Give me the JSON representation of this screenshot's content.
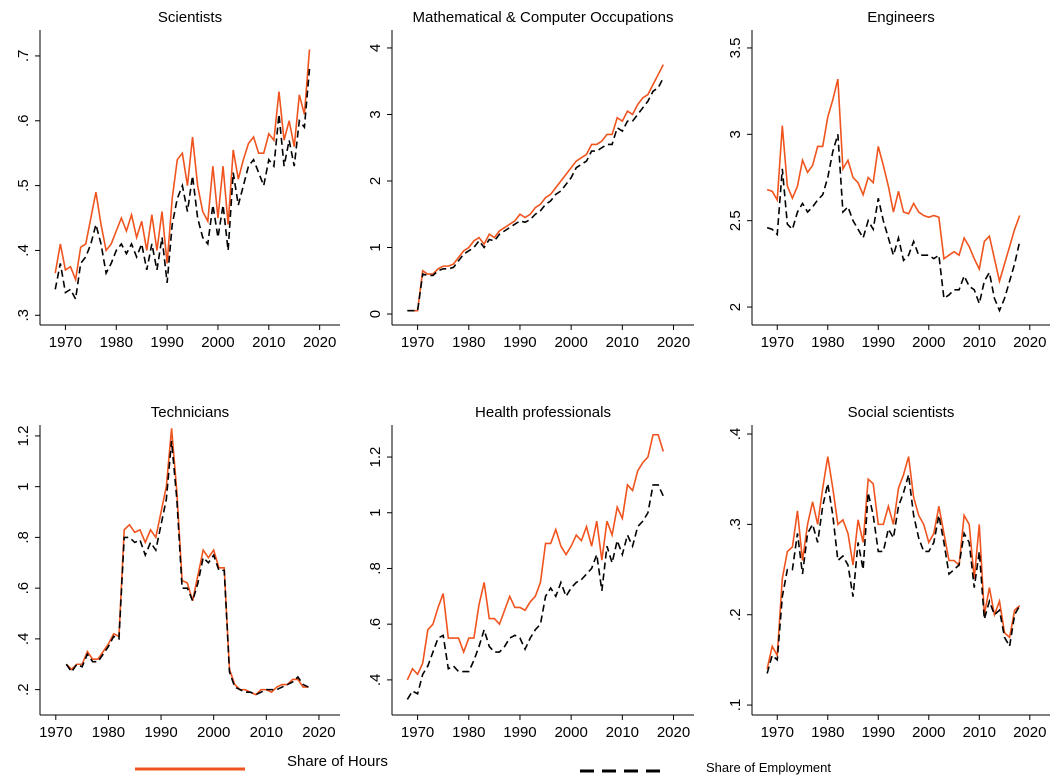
{
  "chart_data": [
    {
      "type": "line",
      "title": "Scientists",
      "x": [
        1968,
        1969,
        1970,
        1971,
        1972,
        1973,
        1974,
        1975,
        1976,
        1977,
        1978,
        1979,
        1980,
        1981,
        1982,
        1983,
        1984,
        1985,
        1986,
        1987,
        1988,
        1989,
        1990,
        1991,
        1992,
        1993,
        1994,
        1995,
        1996,
        1997,
        1998,
        1999,
        2000,
        2001,
        2002,
        2003,
        2004,
        2005,
        2006,
        2007,
        2008,
        2009,
        2010,
        2011,
        2012,
        2013,
        2014,
        2015,
        2016,
        2017,
        2018
      ],
      "series": [
        {
          "name": "Share of Hours",
          "color": "#f0541e",
          "values": [
            0.365,
            0.41,
            0.37,
            0.375,
            0.355,
            0.405,
            0.41,
            0.45,
            0.49,
            0.44,
            0.4,
            0.41,
            0.43,
            0.45,
            0.43,
            0.455,
            0.42,
            0.445,
            0.4,
            0.455,
            0.4,
            0.46,
            0.38,
            0.48,
            0.54,
            0.55,
            0.5,
            0.575,
            0.5,
            0.46,
            0.445,
            0.53,
            0.45,
            0.53,
            0.44,
            0.555,
            0.51,
            0.54,
            0.565,
            0.575,
            0.55,
            0.55,
            0.58,
            0.57,
            0.645,
            0.57,
            0.6,
            0.56,
            0.64,
            0.61,
            0.71
          ]
        },
        {
          "name": "Share of Employment",
          "color": "#000000",
          "values": [
            0.34,
            0.38,
            0.335,
            0.34,
            0.325,
            0.38,
            0.39,
            0.41,
            0.44,
            0.41,
            0.365,
            0.38,
            0.4,
            0.41,
            0.395,
            0.41,
            0.39,
            0.41,
            0.37,
            0.41,
            0.37,
            0.42,
            0.35,
            0.44,
            0.48,
            0.5,
            0.46,
            0.515,
            0.45,
            0.42,
            0.41,
            0.47,
            0.42,
            0.47,
            0.4,
            0.52,
            0.47,
            0.5,
            0.53,
            0.54,
            0.52,
            0.5,
            0.54,
            0.53,
            0.61,
            0.53,
            0.57,
            0.53,
            0.6,
            0.59,
            0.68
          ]
        }
      ],
      "xlim": [
        1965,
        2024
      ],
      "xticks": [
        1970,
        1980,
        1990,
        2000,
        2010,
        2020
      ],
      "ylim": [
        0.285,
        0.74
      ],
      "yticks": [
        {
          "value": 0.3,
          "label": ".3"
        },
        {
          "value": 0.4,
          "label": ".4"
        },
        {
          "value": 0.5,
          "label": ".5"
        },
        {
          "value": 0.6,
          "label": ".6"
        },
        {
          "value": 0.7,
          "label": ".7"
        }
      ]
    },
    {
      "type": "line",
      "title": "Mathematical & Computer Occupations",
      "x": [
        1968,
        1969,
        1970,
        1971,
        1972,
        1973,
        1974,
        1975,
        1976,
        1977,
        1978,
        1979,
        1980,
        1981,
        1982,
        1983,
        1984,
        1985,
        1986,
        1987,
        1988,
        1989,
        1990,
        1991,
        1992,
        1993,
        1994,
        1995,
        1996,
        1997,
        1998,
        1999,
        2000,
        2001,
        2002,
        2003,
        2004,
        2005,
        2006,
        2007,
        2008,
        2009,
        2010,
        2011,
        2012,
        2013,
        2014,
        2015,
        2016,
        2017,
        2018
      ],
      "series": [
        {
          "name": "Share of Hours",
          "color": "#f0541e",
          "values": [
            0.05,
            0.05,
            0.05,
            0.65,
            0.6,
            0.6,
            0.68,
            0.72,
            0.72,
            0.75,
            0.85,
            0.95,
            1.0,
            1.1,
            1.15,
            1.05,
            1.2,
            1.15,
            1.25,
            1.3,
            1.35,
            1.4,
            1.5,
            1.45,
            1.5,
            1.6,
            1.65,
            1.75,
            1.8,
            1.9,
            2.0,
            2.1,
            2.2,
            2.3,
            2.35,
            2.4,
            2.55,
            2.55,
            2.6,
            2.7,
            2.7,
            2.95,
            2.9,
            3.05,
            3.0,
            3.15,
            3.25,
            3.3,
            3.45,
            3.6,
            3.75
          ]
        },
        {
          "name": "Share of Employment",
          "color": "#000000",
          "values": [
            0.05,
            0.05,
            0.05,
            0.6,
            0.58,
            0.58,
            0.65,
            0.68,
            0.68,
            0.7,
            0.8,
            0.9,
            0.95,
            1.0,
            1.1,
            1.0,
            1.12,
            1.1,
            1.2,
            1.25,
            1.3,
            1.35,
            1.4,
            1.38,
            1.42,
            1.5,
            1.55,
            1.65,
            1.7,
            1.8,
            1.85,
            1.95,
            2.05,
            2.2,
            2.25,
            2.3,
            2.45,
            2.45,
            2.5,
            2.55,
            2.55,
            2.8,
            2.75,
            2.9,
            2.9,
            3.0,
            3.1,
            3.2,
            3.35,
            3.4,
            3.55
          ]
        }
      ],
      "xlim": [
        1965,
        2024
      ],
      "xticks": [
        1970,
        1980,
        1990,
        2000,
        2010,
        2020
      ],
      "ylim": [
        -0.165,
        4.27
      ],
      "yticks": [
        0,
        1,
        2,
        3,
        4
      ]
    },
    {
      "type": "line",
      "title": "Engineers",
      "x": [
        1968,
        1969,
        1970,
        1971,
        1972,
        1973,
        1974,
        1975,
        1976,
        1977,
        1978,
        1979,
        1980,
        1981,
        1982,
        1983,
        1984,
        1985,
        1986,
        1987,
        1988,
        1989,
        1990,
        1991,
        1992,
        1993,
        1994,
        1995,
        1996,
        1997,
        1998,
        1999,
        2000,
        2001,
        2002,
        2003,
        2004,
        2005,
        2006,
        2007,
        2008,
        2009,
        2010,
        2011,
        2012,
        2013,
        2014,
        2015,
        2016,
        2017,
        2018
      ],
      "series": [
        {
          "name": "Share of Hours",
          "color": "#f0541e",
          "values": [
            2.68,
            2.67,
            2.62,
            3.05,
            2.7,
            2.63,
            2.7,
            2.85,
            2.78,
            2.82,
            2.93,
            2.93,
            3.1,
            3.2,
            3.32,
            2.8,
            2.85,
            2.75,
            2.72,
            2.65,
            2.75,
            2.72,
            2.93,
            2.82,
            2.7,
            2.55,
            2.67,
            2.55,
            2.54,
            2.6,
            2.55,
            2.53,
            2.52,
            2.53,
            2.52,
            2.28,
            2.3,
            2.32,
            2.3,
            2.4,
            2.35,
            2.28,
            2.22,
            2.38,
            2.41,
            2.28,
            2.15,
            2.25,
            2.35,
            2.45,
            2.53
          ]
        },
        {
          "name": "Share of Employment",
          "color": "#000000",
          "values": [
            2.46,
            2.45,
            2.42,
            2.8,
            2.48,
            2.45,
            2.55,
            2.6,
            2.55,
            2.58,
            2.62,
            2.65,
            2.75,
            2.9,
            3.0,
            2.55,
            2.58,
            2.5,
            2.45,
            2.4,
            2.5,
            2.45,
            2.63,
            2.5,
            2.4,
            2.3,
            2.4,
            2.27,
            2.3,
            2.38,
            2.3,
            2.3,
            2.3,
            2.28,
            2.3,
            2.05,
            2.07,
            2.1,
            2.1,
            2.18,
            2.12,
            2.1,
            2.02,
            2.15,
            2.2,
            2.05,
            1.98,
            2.05,
            2.15,
            2.25,
            2.38
          ]
        }
      ],
      "xlim": [
        1965,
        2024
      ],
      "xticks": [
        1970,
        1980,
        1990,
        2000,
        2010,
        2020
      ],
      "ylim": [
        1.896,
        3.604
      ],
      "yticks": [
        2,
        2.5,
        3,
        3.5
      ]
    },
    {
      "type": "line",
      "title": "Technicians",
      "x": [
        1972,
        1973,
        1974,
        1975,
        1976,
        1977,
        1978,
        1979,
        1980,
        1981,
        1982,
        1983,
        1984,
        1985,
        1986,
        1987,
        1988,
        1989,
        1990,
        1991,
        1992,
        1993,
        1994,
        1995,
        1996,
        1997,
        1998,
        1999,
        2000,
        2001,
        2002,
        2003,
        2004,
        2005,
        2006,
        2007,
        2008,
        2009,
        2010,
        2011,
        2012,
        2013,
        2014,
        2015,
        2016,
        2017,
        2018
      ],
      "series": [
        {
          "name": "Share of Hours",
          "color": "#f0541e",
          "values": [
            0.3,
            0.28,
            0.3,
            0.3,
            0.35,
            0.32,
            0.32,
            0.35,
            0.38,
            0.42,
            0.41,
            0.83,
            0.85,
            0.82,
            0.83,
            0.78,
            0.83,
            0.8,
            0.9,
            1.0,
            1.23,
            0.98,
            0.63,
            0.62,
            0.55,
            0.65,
            0.75,
            0.72,
            0.75,
            0.68,
            0.68,
            0.28,
            0.22,
            0.2,
            0.2,
            0.19,
            0.18,
            0.2,
            0.2,
            0.19,
            0.21,
            0.22,
            0.22,
            0.24,
            0.24,
            0.21,
            0.21
          ]
        },
        {
          "name": "Share of Employment",
          "color": "#000000",
          "values": [
            0.3,
            0.27,
            0.3,
            0.29,
            0.34,
            0.31,
            0.31,
            0.34,
            0.37,
            0.41,
            0.4,
            0.8,
            0.8,
            0.78,
            0.79,
            0.73,
            0.78,
            0.75,
            0.85,
            0.95,
            1.18,
            0.95,
            0.6,
            0.6,
            0.55,
            0.62,
            0.72,
            0.7,
            0.73,
            0.67,
            0.67,
            0.27,
            0.21,
            0.2,
            0.19,
            0.19,
            0.18,
            0.19,
            0.2,
            0.2,
            0.2,
            0.21,
            0.22,
            0.23,
            0.25,
            0.22,
            0.21
          ]
        }
      ],
      "xlim": [
        1967,
        2024
      ],
      "xticks": [
        1970,
        1980,
        1990,
        2000,
        2010,
        2020
      ],
      "ylim": [
        0.1,
        1.243
      ],
      "yticks": [
        {
          "value": 0.2,
          "label": ".2"
        },
        {
          "value": 0.4,
          "label": ".4"
        },
        {
          "value": 0.6,
          "label": ".6"
        },
        {
          "value": 0.8,
          "label": ".8"
        },
        1,
        1.2
      ]
    },
    {
      "type": "line",
      "title": "Health professionals",
      "x": [
        1968,
        1969,
        1970,
        1971,
        1972,
        1973,
        1974,
        1975,
        1976,
        1977,
        1978,
        1979,
        1980,
        1981,
        1982,
        1983,
        1984,
        1985,
        1986,
        1987,
        1988,
        1989,
        1990,
        1991,
        1992,
        1993,
        1994,
        1995,
        1996,
        1997,
        1998,
        1999,
        2000,
        2001,
        2002,
        2003,
        2004,
        2005,
        2006,
        2007,
        2008,
        2009,
        2010,
        2011,
        2012,
        2013,
        2014,
        2015,
        2016,
        2017,
        2018
      ],
      "series": [
        {
          "name": "Share of Hours",
          "color": "#f0541e",
          "values": [
            0.4,
            0.44,
            0.42,
            0.46,
            0.58,
            0.6,
            0.66,
            0.71,
            0.55,
            0.55,
            0.55,
            0.5,
            0.55,
            0.55,
            0.67,
            0.75,
            0.62,
            0.62,
            0.6,
            0.65,
            0.7,
            0.66,
            0.66,
            0.65,
            0.68,
            0.7,
            0.75,
            0.89,
            0.89,
            0.94,
            0.88,
            0.85,
            0.88,
            0.92,
            0.9,
            0.95,
            0.88,
            0.97,
            0.83,
            0.97,
            0.92,
            1.02,
            0.98,
            1.1,
            1.08,
            1.15,
            1.18,
            1.2,
            1.28,
            1.28,
            1.22
          ]
        },
        {
          "name": "Share of Employment",
          "color": "#000000",
          "values": [
            0.33,
            0.36,
            0.35,
            0.42,
            0.45,
            0.5,
            0.55,
            0.56,
            0.44,
            0.45,
            0.43,
            0.43,
            0.43,
            0.47,
            0.52,
            0.58,
            0.52,
            0.5,
            0.5,
            0.52,
            0.55,
            0.56,
            0.55,
            0.51,
            0.55,
            0.58,
            0.6,
            0.7,
            0.73,
            0.7,
            0.75,
            0.7,
            0.73,
            0.75,
            0.76,
            0.78,
            0.8,
            0.85,
            0.72,
            0.88,
            0.82,
            0.9,
            0.85,
            0.92,
            0.88,
            0.95,
            0.97,
            1.0,
            1.1,
            1.1,
            1.06
          ]
        }
      ],
      "xlim": [
        1965,
        2024
      ],
      "xticks": [
        1970,
        1980,
        1990,
        2000,
        2010,
        2020
      ],
      "ylim": [
        0.274,
        1.315
      ],
      "yticks": [
        {
          "value": 0.4,
          "label": ".4"
        },
        {
          "value": 0.6,
          "label": ".6"
        },
        {
          "value": 0.8,
          "label": ".8"
        },
        1,
        1.2
      ]
    },
    {
      "type": "line",
      "title": "Social scientists",
      "x": [
        1968,
        1969,
        1970,
        1971,
        1972,
        1973,
        1974,
        1975,
        1976,
        1977,
        1978,
        1979,
        1980,
        1981,
        1982,
        1983,
        1984,
        1985,
        1986,
        1987,
        1988,
        1989,
        1990,
        1991,
        1992,
        1993,
        1994,
        1995,
        1996,
        1997,
        1998,
        1999,
        2000,
        2001,
        2002,
        2003,
        2004,
        2005,
        2006,
        2007,
        2008,
        2009,
        2010,
        2011,
        2012,
        2013,
        2014,
        2015,
        2016,
        2017,
        2018
      ],
      "series": [
        {
          "name": "Share of Hours",
          "color": "#f0541e",
          "values": [
            0.14,
            0.165,
            0.155,
            0.24,
            0.27,
            0.275,
            0.315,
            0.26,
            0.3,
            0.325,
            0.3,
            0.34,
            0.375,
            0.34,
            0.3,
            0.305,
            0.29,
            0.255,
            0.305,
            0.28,
            0.35,
            0.345,
            0.3,
            0.3,
            0.32,
            0.3,
            0.34,
            0.355,
            0.375,
            0.33,
            0.31,
            0.3,
            0.28,
            0.29,
            0.32,
            0.29,
            0.26,
            0.26,
            0.255,
            0.31,
            0.3,
            0.24,
            0.3,
            0.2,
            0.23,
            0.2,
            0.215,
            0.18,
            0.175,
            0.205,
            0.21
          ]
        },
        {
          "name": "Share of Employment",
          "color": "#000000",
          "values": [
            0.135,
            0.155,
            0.15,
            0.22,
            0.25,
            0.25,
            0.29,
            0.245,
            0.29,
            0.3,
            0.28,
            0.32,
            0.345,
            0.31,
            0.26,
            0.265,
            0.255,
            0.22,
            0.28,
            0.25,
            0.335,
            0.31,
            0.27,
            0.27,
            0.295,
            0.285,
            0.32,
            0.335,
            0.355,
            0.31,
            0.285,
            0.27,
            0.27,
            0.28,
            0.31,
            0.28,
            0.245,
            0.25,
            0.255,
            0.29,
            0.28,
            0.23,
            0.27,
            0.195,
            0.215,
            0.2,
            0.205,
            0.175,
            0.165,
            0.2,
            0.21
          ]
        }
      ],
      "xlim": [
        1965,
        2024
      ],
      "xticks": [
        1970,
        1980,
        1990,
        2000,
        2010,
        2020
      ],
      "ylim": [
        0.089,
        0.41
      ],
      "yticks": [
        {
          "value": 0.1,
          "label": ".1"
        },
        {
          "value": 0.2,
          "label": ".2"
        },
        {
          "value": 0.3,
          "label": ".3"
        },
        {
          "value": 0.4,
          "label": ".4"
        }
      ]
    }
  ]
}
